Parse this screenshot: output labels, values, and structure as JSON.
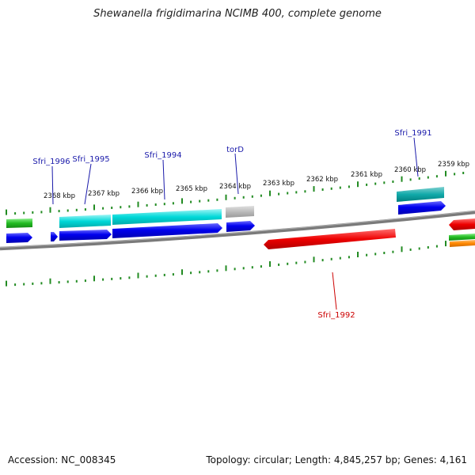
{
  "title": "Shewanella frigidimarina NCIMB 400, complete genome",
  "footer": {
    "accession": "Accession: NC_008345",
    "summary": "Topology: circular; Length: 4,845,257 bp; Genes: 4,161"
  },
  "colors": {
    "backbone": "#808080",
    "tick": "#228b22",
    "forward_cds": "#0000ee",
    "forward_cds_light": "#00cccc",
    "reverse_cds": "#ee0000",
    "gray_feature": "#bbbbbb",
    "green_feature": "#22bb22",
    "orange_feature": "#ff8800",
    "gene_label": "#1a1aaa",
    "gene_label_reverse": "#cc0000",
    "kbp_label": "#111111"
  },
  "kbp_labels": [
    "2368 kbp",
    "2367 kbp",
    "2366 kbp",
    "2365 kbp",
    "2364 kbp",
    "2363 kbp",
    "2362 kbp",
    "2361 kbp",
    "2360 kbp",
    "2359 kbp"
  ],
  "gene_labels": [
    {
      "name": "Sfri_1996",
      "strand": "forward"
    },
    {
      "name": "Sfri_1995",
      "strand": "forward"
    },
    {
      "name": "Sfri_1994",
      "strand": "forward"
    },
    {
      "name": "torD",
      "strand": "forward"
    },
    {
      "name": "Sfri_1991",
      "strand": "forward"
    },
    {
      "name": "Sfri_1992",
      "strand": "reverse"
    }
  ]
}
